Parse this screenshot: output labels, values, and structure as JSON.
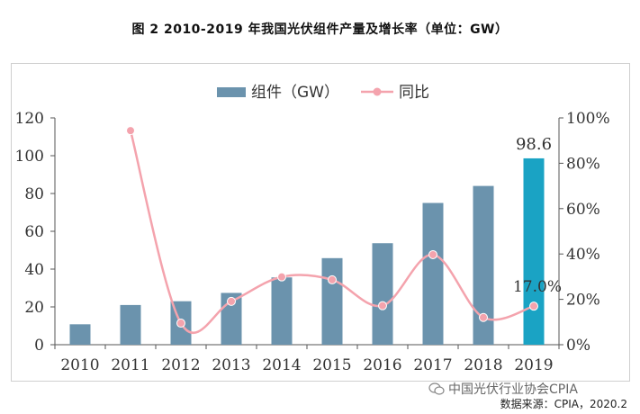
{
  "title": "图 2 2010-2019 年我国光伏组件产量及增长率（单位：GW）",
  "watermark": "中国光伏行业协会CPIA",
  "source": "数据来源：CPIA，2020.2",
  "colors": {
    "bar": "#6b93ad",
    "bar_highlight": "#1aa3c4",
    "line": "#f4a3ad",
    "axis": "#555555",
    "text": "#333333"
  },
  "chart_data": {
    "type": "bar",
    "categories": [
      "2010",
      "2011",
      "2012",
      "2013",
      "2014",
      "2015",
      "2016",
      "2017",
      "2018",
      "2019"
    ],
    "series": [
      {
        "name": "组件（GW）",
        "type": "bar",
        "axis": "left",
        "values": [
          10.8,
          21,
          23,
          27.4,
          35.6,
          45.8,
          53.7,
          75,
          84,
          98.6
        ]
      },
      {
        "name": "同比",
        "type": "line",
        "axis": "right",
        "values": [
          null,
          94.4,
          9.5,
          19.1,
          29.9,
          28.6,
          17.2,
          39.7,
          12,
          17.0
        ]
      }
    ],
    "y_left": {
      "min": 0,
      "max": 120,
      "ticks": [
        "0",
        "20",
        "40",
        "60",
        "80",
        "100",
        "120"
      ]
    },
    "y_right": {
      "min": 0,
      "max": 100,
      "ticks": [
        "0%",
        "20%",
        "40%",
        "60%",
        "80%",
        "100%"
      ]
    },
    "data_labels": {
      "bar_2019": "98.6",
      "line_2019": "17.0%"
    },
    "legend_position": "top",
    "grid": false
  }
}
